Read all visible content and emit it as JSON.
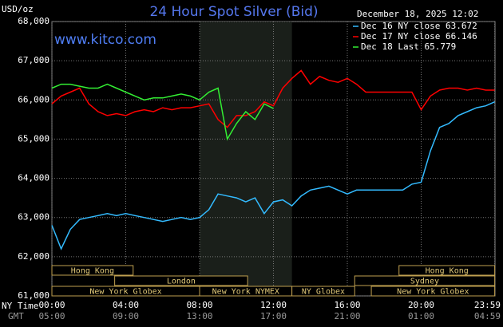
{
  "chart_data": {
    "type": "line",
    "title": "24 Hour Spot Silver (Bid)",
    "y_unit": "USD/oz",
    "watermark": "www.kitco.com",
    "timestamp": "December 18, 2025 12:02",
    "x_row_label": "NY Time",
    "x2_row_label": "GMT",
    "x": [
      0,
      0.5,
      1,
      1.5,
      2,
      2.5,
      3,
      3.5,
      4,
      4.5,
      5,
      5.5,
      6,
      6.5,
      7,
      7.5,
      8,
      8.5,
      9,
      9.5,
      10,
      10.5,
      11,
      11.5,
      12,
      12.5,
      13,
      13.5,
      14,
      14.5,
      15,
      15.5,
      16,
      16.5,
      17,
      17.5,
      18,
      18.5,
      19,
      19.5,
      20,
      20.5,
      21,
      21.5,
      22,
      22.5,
      23,
      23.5,
      23.983
    ],
    "series": [
      {
        "name": "Dec 16 NY close 63.672",
        "color": "#33bbff",
        "values": [
          62.8,
          62.2,
          62.7,
          62.95,
          63.0,
          63.05,
          63.1,
          63.05,
          63.1,
          63.05,
          63.0,
          62.95,
          62.9,
          62.95,
          63.0,
          62.95,
          63.0,
          63.2,
          63.6,
          63.55,
          63.5,
          63.4,
          63.5,
          63.1,
          63.4,
          63.45,
          63.3,
          63.55,
          63.7,
          63.75,
          63.8,
          63.7,
          63.6,
          63.7,
          63.7,
          63.7,
          63.7,
          63.7,
          63.7,
          63.85,
          63.9,
          64.7,
          65.3,
          65.4,
          65.6,
          65.7,
          65.8,
          65.85,
          65.95
        ]
      },
      {
        "name": "Dec 17 NY close 66.146",
        "color": "#ff0000",
        "values": [
          65.9,
          66.1,
          66.2,
          66.3,
          65.9,
          65.7,
          65.6,
          65.65,
          65.6,
          65.7,
          65.75,
          65.7,
          65.8,
          65.75,
          65.8,
          65.8,
          65.85,
          65.9,
          65.5,
          65.3,
          65.6,
          65.6,
          65.7,
          65.95,
          65.85,
          66.3,
          66.55,
          66.75,
          66.4,
          66.6,
          66.5,
          66.45,
          66.55,
          66.4,
          66.2,
          66.2,
          66.2,
          66.2,
          66.2,
          66.2,
          65.75,
          66.1,
          66.25,
          66.3,
          66.3,
          66.25,
          66.3,
          66.25,
          66.25
        ]
      },
      {
        "name": "Dec 18 Last 65.779",
        "color": "#33ee33",
        "values": [
          66.3,
          66.4,
          66.4,
          66.35,
          66.3,
          66.3,
          66.4,
          66.3,
          66.2,
          66.1,
          66.0,
          66.05,
          66.05,
          66.1,
          66.15,
          66.1,
          66.0,
          66.2,
          66.3,
          65.0,
          65.4,
          65.7,
          65.5,
          65.9,
          65.78,
          null,
          null,
          null,
          null,
          null,
          null,
          null,
          null,
          null,
          null,
          null,
          null,
          null,
          null,
          null,
          null,
          null,
          null,
          null,
          null,
          null,
          null,
          null,
          null
        ]
      }
    ],
    "xlim": [
      0,
      24
    ],
    "xticks": [
      {
        "value": 0,
        "label": "00:00"
      },
      {
        "value": 4,
        "label": "04:00"
      },
      {
        "value": 8,
        "label": "08:00"
      },
      {
        "value": 12,
        "label": "12:00"
      },
      {
        "value": 16,
        "label": "16:00"
      },
      {
        "value": 20,
        "label": "20:00"
      },
      {
        "value": 23.983,
        "label": "23:59"
      }
    ],
    "x2ticks": [
      {
        "value": 0,
        "label": "05:00"
      },
      {
        "value": 4,
        "label": "09:00"
      },
      {
        "value": 8,
        "label": "13:00"
      },
      {
        "value": 12,
        "label": "17:00"
      },
      {
        "value": 16,
        "label": "21:00"
      },
      {
        "value": 20,
        "label": "01:00"
      },
      {
        "value": 23.983,
        "label": "04:59"
      }
    ],
    "ylim": [
      61,
      68
    ],
    "yticks": [
      {
        "value": 61,
        "label": "61,000"
      },
      {
        "value": 62,
        "label": "62,000"
      },
      {
        "value": 63,
        "label": "63,000"
      },
      {
        "value": 64,
        "label": "64,000"
      },
      {
        "value": 65,
        "label": "65,000"
      },
      {
        "value": 66,
        "label": "66,000"
      },
      {
        "value": 67,
        "label": "67,000"
      },
      {
        "value": 68,
        "label": "68,000"
      }
    ],
    "grid": true,
    "shaded": [
      8,
      13
    ],
    "sessions": [
      {
        "label": "Hong Kong",
        "start": 0,
        "end": 4.4,
        "row": 0
      },
      {
        "label": "London",
        "start": 3.4,
        "end": 10.6,
        "row": 1
      },
      {
        "label": "New York Globex",
        "start": 0,
        "end": 8,
        "row": 2
      },
      {
        "label": "New York NYMEX",
        "start": 8,
        "end": 13,
        "row": 2
      },
      {
        "label": "NY Globex",
        "start": 13,
        "end": 16.4,
        "row": 2
      },
      {
        "label": "Hong Kong",
        "start": 18.8,
        "end": 23.983,
        "row": 0
      },
      {
        "label": "Sydney",
        "start": 16.4,
        "end": 23.983,
        "row": 1
      },
      {
        "label": "New York Globex",
        "start": 17.3,
        "end": 23.983,
        "row": 2
      }
    ]
  }
}
